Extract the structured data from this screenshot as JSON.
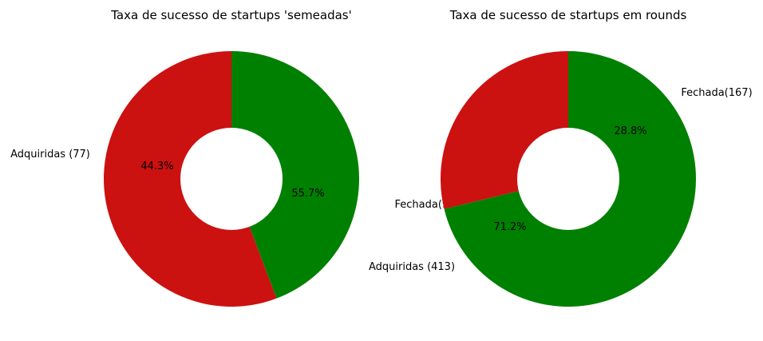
{
  "chart_data": [
    {
      "type": "pie",
      "donut": true,
      "title": "Taxa de sucesso de startups 'semeadas'",
      "slices": [
        {
          "label": "Fechada(97)",
          "value": 97,
          "percent_label": "55.7%",
          "color": "#cc1111"
        },
        {
          "label": "Adquiridas (77)",
          "value": 77,
          "percent_label": "44.3%",
          "color": "#008000"
        }
      ]
    },
    {
      "type": "pie",
      "donut": true,
      "title": "Taxa de sucesso de startups em rounds",
      "slices": [
        {
          "label": "Fechada(167)",
          "value": 167,
          "percent_label": "28.8%",
          "color": "#cc1111"
        },
        {
          "label": "Adquiridas (413)",
          "value": 413,
          "percent_label": "71.2%",
          "color": "#008000"
        }
      ]
    }
  ]
}
